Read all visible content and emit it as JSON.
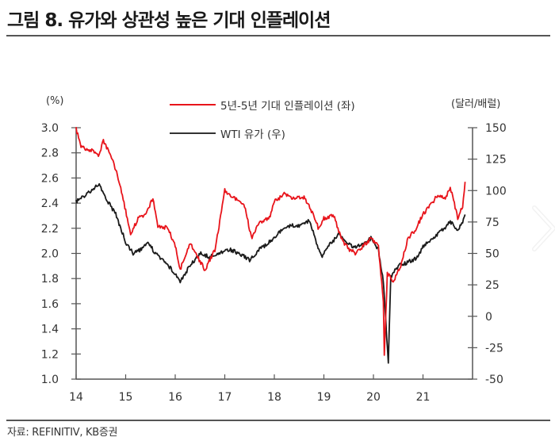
{
  "header": {
    "title": "그림 8. 유가와 상관성 높은 기대 인플레이션"
  },
  "footer": {
    "source": "자료: REFINITIV, KB증권"
  },
  "nav": {
    "next_arrow": "chevron-right"
  },
  "colors": {
    "inflation_line": "#e8141b",
    "wti_line": "#1a1a1a",
    "axis": "#555555",
    "rule": "#555555"
  },
  "chart_data": {
    "type": "line",
    "title": "유가와 상관성 높은 기대 인플레이션",
    "xlabel": "",
    "ylabel": "(%)",
    "ylabel_right": "(달러/배럴)",
    "x_ticks": [
      "14",
      "15",
      "16",
      "17",
      "18",
      "19",
      "20",
      "21"
    ],
    "xlim": [
      14,
      22.0
    ],
    "ylim": [
      1.0,
      3.0
    ],
    "ylim_right": [
      -50,
      150
    ],
    "y_ticks": [
      "3.0",
      "2.8",
      "2.6",
      "2.4",
      "2.2",
      "2.0",
      "1.8",
      "1.6",
      "1.4",
      "1.2",
      "1.0"
    ],
    "y_ticks_right": [
      "150",
      "125",
      "100",
      "75",
      "50",
      "25",
      "0",
      "-25",
      "-50"
    ],
    "grid": false,
    "legend_position": "top-center",
    "series": [
      {
        "name": "5년-5년 기대 인플레이션 (좌)",
        "axis": "left",
        "color": "#e8141b",
        "x": [
          14.0,
          14.1,
          14.3,
          14.45,
          14.55,
          14.7,
          14.85,
          15.0,
          15.1,
          15.25,
          15.4,
          15.55,
          15.65,
          15.85,
          16.0,
          16.1,
          16.3,
          16.45,
          16.6,
          16.8,
          16.9,
          17.0,
          17.2,
          17.4,
          17.5,
          17.55,
          17.7,
          17.9,
          18.0,
          18.2,
          18.4,
          18.6,
          18.75,
          18.9,
          19.0,
          19.2,
          19.35,
          19.5,
          19.65,
          19.8,
          19.95,
          20.1,
          20.2,
          20.22,
          20.28,
          20.4,
          20.55,
          20.7,
          20.85,
          21.0,
          21.15,
          21.3,
          21.45,
          21.55,
          21.7,
          21.8,
          21.85
        ],
        "values": [
          2.99,
          2.85,
          2.82,
          2.78,
          2.89,
          2.79,
          2.6,
          2.34,
          2.15,
          2.28,
          2.31,
          2.44,
          2.22,
          2.2,
          2.06,
          1.87,
          2.09,
          1.97,
          1.87,
          2.03,
          2.25,
          2.5,
          2.44,
          2.38,
          2.19,
          2.12,
          2.25,
          2.28,
          2.41,
          2.47,
          2.44,
          2.45,
          2.34,
          2.19,
          2.28,
          2.3,
          2.12,
          2.03,
          2.0,
          2.06,
          2.12,
          2.06,
          1.62,
          1.2,
          1.84,
          1.78,
          1.9,
          2.12,
          2.19,
          2.31,
          2.38,
          2.47,
          2.44,
          2.53,
          2.28,
          2.38,
          2.57
        ]
      },
      {
        "name": "WTI 유가 (우)",
        "axis": "right",
        "color": "#1a1a1a",
        "x": [
          14.0,
          14.2,
          14.45,
          14.6,
          14.8,
          15.0,
          15.15,
          15.3,
          15.45,
          15.6,
          15.8,
          16.0,
          16.1,
          16.3,
          16.5,
          16.7,
          16.9,
          17.1,
          17.3,
          17.5,
          17.7,
          17.9,
          18.1,
          18.3,
          18.5,
          18.7,
          18.8,
          18.95,
          19.1,
          19.3,
          19.45,
          19.6,
          19.8,
          19.95,
          20.1,
          20.2,
          20.3,
          20.35,
          20.5,
          20.7,
          20.9,
          21.0,
          21.2,
          21.4,
          21.55,
          21.7,
          21.8,
          21.85
        ],
        "values": [
          91,
          97,
          105,
          94,
          81,
          59,
          50,
          53,
          59,
          50,
          43,
          34,
          28,
          40,
          50,
          47,
          51,
          53,
          50,
          45,
          53,
          59,
          67,
          72,
          72,
          76,
          65,
          47,
          56,
          65,
          59,
          55,
          57,
          62,
          53,
          28,
          -37,
          31,
          40,
          43,
          47,
          56,
          62,
          69,
          75,
          69,
          75,
          81
        ]
      }
    ]
  }
}
